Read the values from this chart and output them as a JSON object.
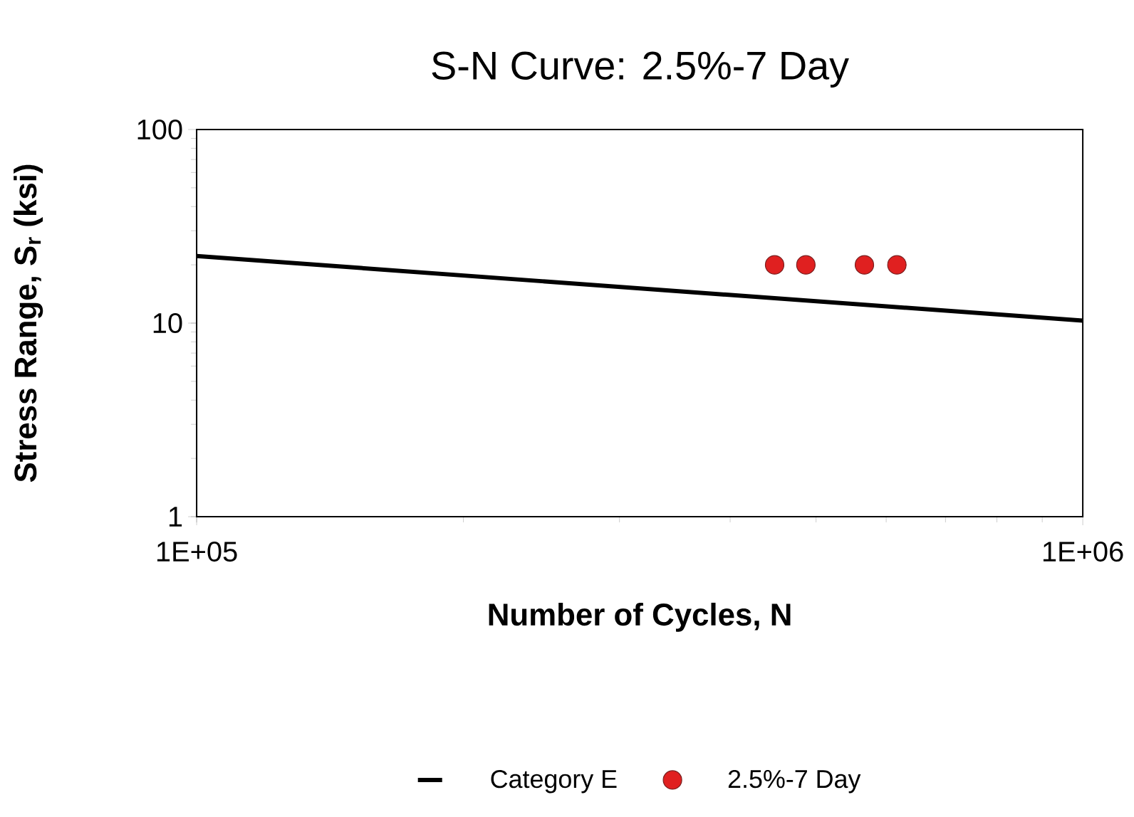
{
  "chart_data": {
    "type": "line",
    "title": "S-N Curve: 2.5%-7 Day",
    "xlabel": "Number of Cycles, N",
    "ylabel": "Stress Range, S$_{r}$ (ksi)",
    "log": "xy",
    "xlim": [
      100000,
      1000000
    ],
    "ylim": [
      1,
      100
    ],
    "xticks": [
      {
        "value": 100000,
        "label": "1E+05"
      },
      {
        "value": 1000000,
        "label": "1E+06"
      }
    ],
    "yticks": [
      1,
      10,
      100
    ],
    "grid": false,
    "legend": "bottom",
    "series": [
      {
        "name": "Category E",
        "marker": "none",
        "color": "#000000",
        "x": [
          100000,
          1000000
        ],
        "values": [
          22.2,
          10.3
        ]
      },
      {
        "name": "2.5%-7 Day",
        "type": "scatter",
        "marker": "circle",
        "color": "#e02020",
        "x": [
          449000,
          487000,
          567000,
          617000
        ],
        "values": [
          20,
          20,
          20,
          20
        ]
      }
    ]
  }
}
